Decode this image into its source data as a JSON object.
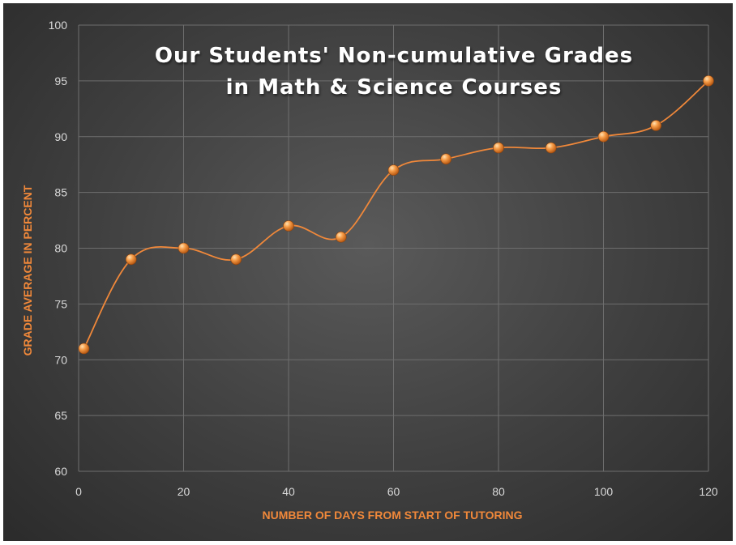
{
  "chart_data": {
    "type": "line",
    "title": [
      "Our Students' Non-cumulative Grades",
      "in Math & Science Courses"
    ],
    "xlabel": "NUMBER OF DAYS FROM START OF TUTORING",
    "ylabel": "GRADE AVERAGE IN PERCENT",
    "xlim": [
      0,
      120
    ],
    "ylim": [
      60,
      100
    ],
    "x_ticks": [
      0,
      20,
      40,
      60,
      80,
      100,
      120
    ],
    "y_ticks": [
      60,
      65,
      70,
      75,
      80,
      85,
      90,
      95,
      100
    ],
    "grid": true,
    "smooth": true,
    "series": [
      {
        "x": [
          1,
          10,
          20,
          30,
          40,
          50,
          60,
          70,
          80,
          90,
          100,
          110,
          120
        ],
        "y": [
          71,
          79,
          80,
          79,
          82,
          81,
          87,
          88,
          89,
          89,
          90,
          91,
          95
        ]
      }
    ],
    "colors": {
      "line": "#f0883a",
      "marker": "#f0883a",
      "grid": "#6e6e6e",
      "axis_title": "#f0883a",
      "tick_label": "#d9d9d9",
      "title": "#ffffff"
    }
  }
}
